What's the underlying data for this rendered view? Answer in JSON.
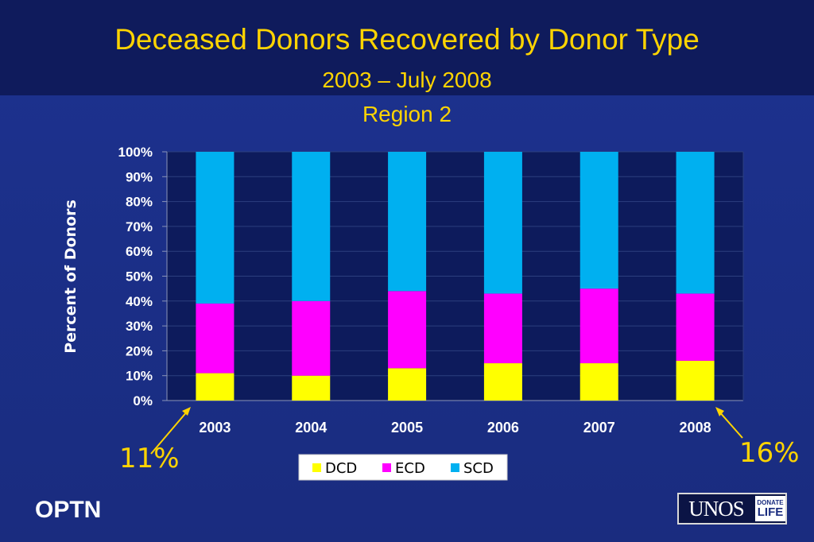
{
  "slide": {
    "title": "Deceased Donors Recovered by Donor Type",
    "subtitle_line1": "2003 – July 2008",
    "subtitle_line2": "Region 2",
    "callout_left": "11%",
    "callout_right": "16%",
    "footer_brand": "OPTN",
    "logo_word": "UNOS",
    "logo_badge_top": "DONATE",
    "logo_badge_bottom": "LIFE"
  },
  "colors": {
    "title": "#ffd400",
    "DCD": "#ffff00",
    "ECD": "#ff00ff",
    "SCD": "#00b0f0",
    "plot_background": "#0d1b5c",
    "text": "#ffffff"
  },
  "chart_data": {
    "type": "bar",
    "stacked": true,
    "categories": [
      "2003",
      "2004",
      "2005",
      "2006",
      "2007",
      "2008"
    ],
    "series": [
      {
        "name": "DCD",
        "values": [
          11,
          10,
          13,
          15,
          15,
          16
        ]
      },
      {
        "name": "ECD",
        "values": [
          28,
          30,
          31,
          28,
          30,
          27
        ]
      },
      {
        "name": "SCD",
        "values": [
          61,
          60,
          56,
          57,
          55,
          57
        ]
      }
    ],
    "ylabel": "Percent of Donors",
    "xlabel": "",
    "ylim": [
      0,
      100
    ],
    "yticks": [
      "0%",
      "10%",
      "20%",
      "30%",
      "40%",
      "50%",
      "60%",
      "70%",
      "80%",
      "90%",
      "100%"
    ],
    "legend": {
      "placement": "bottom",
      "entries": [
        "DCD",
        "ECD",
        "SCD"
      ]
    },
    "grid": true
  }
}
